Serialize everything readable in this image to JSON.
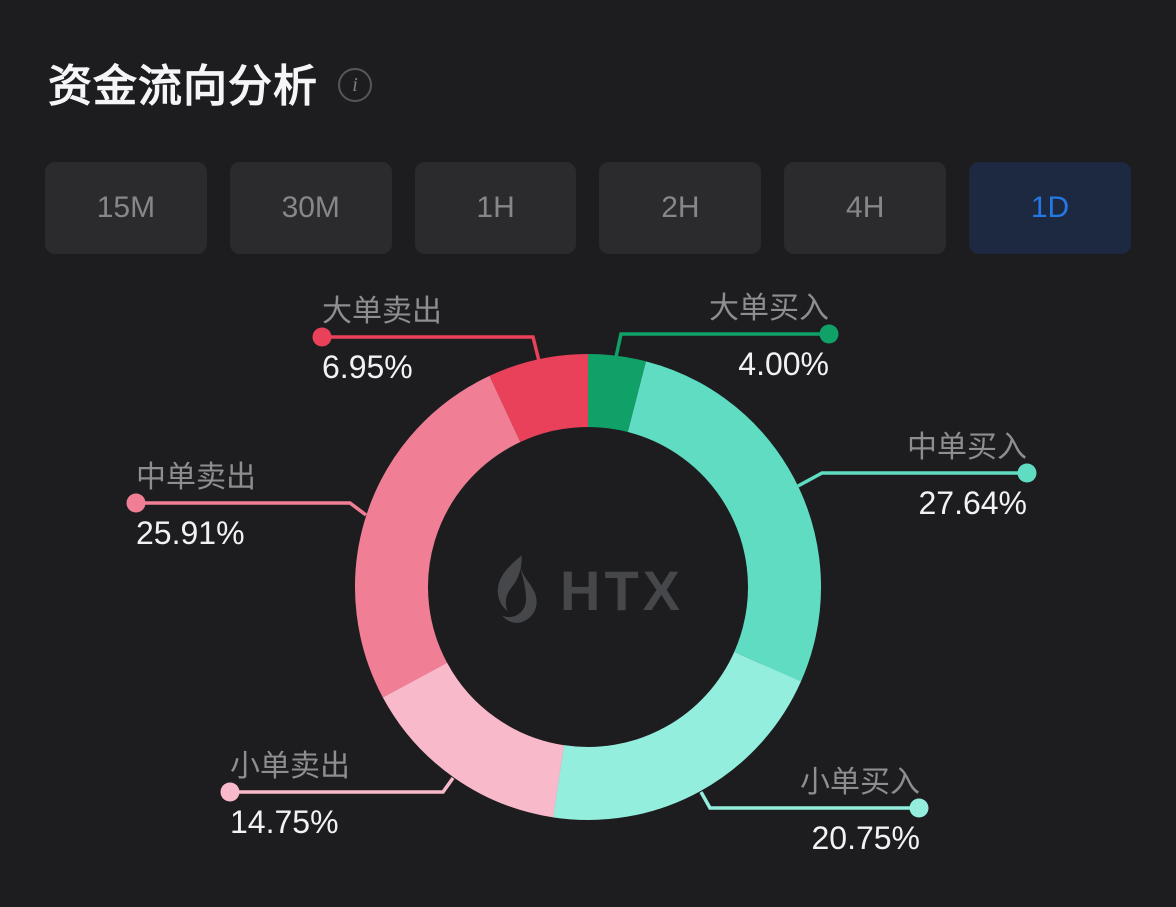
{
  "header": {
    "title": "资金流向分析",
    "info_glyph": "i"
  },
  "timeframes": {
    "selected": "1D",
    "items": [
      {
        "label": "15M",
        "active": false
      },
      {
        "label": "30M",
        "active": false
      },
      {
        "label": "1H",
        "active": false
      },
      {
        "label": "2H",
        "active": false
      },
      {
        "label": "4H",
        "active": false
      },
      {
        "label": "1D",
        "active": true
      }
    ]
  },
  "watermark": {
    "brand": "HTX"
  },
  "colors": {
    "background": "#1d1d1f",
    "button_bg": "#2b2b2d",
    "button_text": "#87878a",
    "active_button_bg": "#1c2940",
    "active_button_text": "#2478e5",
    "title_text": "#f5f5f7",
    "label_text": "#8e8e91",
    "value_text": "#f2f2f4",
    "watermark_text": "#45474a"
  },
  "chart_data": {
    "type": "pie",
    "subtype": "donut",
    "title": "资金流向分析",
    "unit": "%",
    "start_angle_deg": 0,
    "direction": "clockwise",
    "legend_position": "callout-labels",
    "segments": [
      {
        "label": "大单买入",
        "value": 4.0,
        "display": "4.00%",
        "color": "#0fa168"
      },
      {
        "label": "中单买入",
        "value": 27.64,
        "display": "27.64%",
        "color": "#5fdcc2"
      },
      {
        "label": "小单买入",
        "value": 20.75,
        "display": "20.75%",
        "color": "#93eedd"
      },
      {
        "label": "小单卖出",
        "value": 14.75,
        "display": "14.75%",
        "color": "#f8b9ca"
      },
      {
        "label": "中单卖出",
        "value": 25.91,
        "display": "25.91%",
        "color": "#f07f96"
      },
      {
        "label": "大单卖出",
        "value": 6.95,
        "display": "6.95%",
        "color": "#e9415a"
      }
    ]
  }
}
